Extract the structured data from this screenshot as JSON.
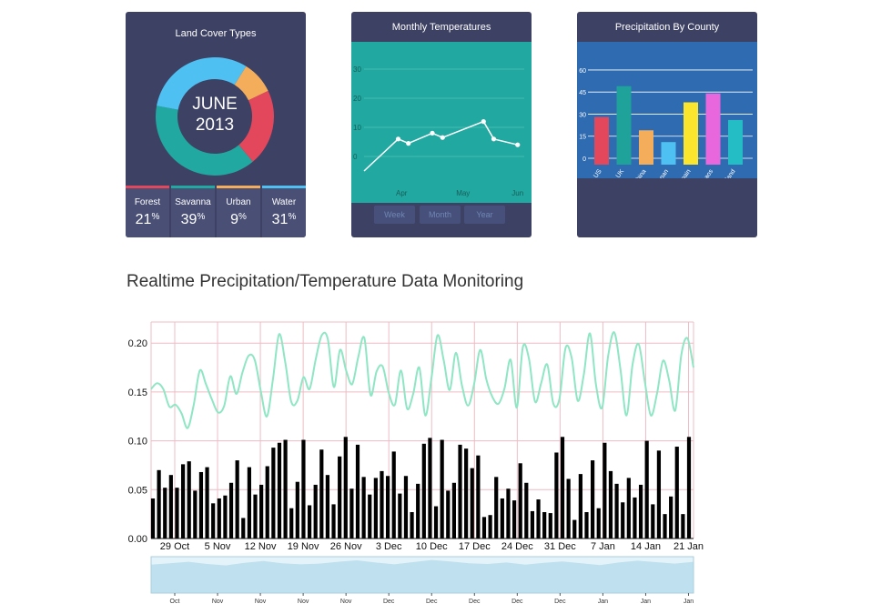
{
  "land_cover": {
    "title": "Land Cover Types",
    "center_month": "JUNE",
    "center_year": "2013",
    "stats": [
      {
        "name": "Forest",
        "value": "21",
        "unit": "%",
        "color": "#e2475b"
      },
      {
        "name": "Savanna",
        "value": "39",
        "unit": "%",
        "color": "#21a8a0"
      },
      {
        "name": "Urban",
        "value": "9",
        "unit": "%",
        "color": "#f4ad5a"
      },
      {
        "name": "Water",
        "value": "31",
        "unit": "%",
        "color": "#4fc0f2"
      }
    ]
  },
  "monthly_temps": {
    "title": "Monthly Temperatures",
    "buttons": [
      "Week",
      "Month",
      "Year"
    ]
  },
  "precip_county": {
    "title": "Precipitation By County"
  },
  "monitoring": {
    "title": "Realtime Precipitation/Temperature Data Monitoring"
  },
  "chart_data": [
    {
      "type": "pie",
      "title": "Land Cover Types",
      "categories": [
        "Forest",
        "Savanna",
        "Urban",
        "Water"
      ],
      "values": [
        21,
        39,
        9,
        31
      ],
      "colors": [
        "#e2475b",
        "#21a8a0",
        "#f4ad5a",
        "#4fc0f2"
      ],
      "donut": true
    },
    {
      "type": "line",
      "title": "Monthly Temperatures",
      "x": [
        0,
        1,
        1.3,
        2,
        2.3,
        3.5,
        3.8,
        4.5
      ],
      "values": [
        -5,
        6,
        4.5,
        8,
        6.5,
        12,
        6,
        4
      ],
      "ylim": [
        -5,
        35
      ],
      "yticks": [
        0,
        10,
        20,
        30
      ],
      "xtick_labels": [
        "Apr",
        "May",
        "Jun"
      ],
      "xtick_positions": [
        1.1,
        2.9,
        4.5
      ],
      "color": "#ffffff",
      "background": "#21a8a0"
    },
    {
      "type": "bar",
      "title": "Precipitation By County",
      "categories": [
        "US",
        "UK",
        "China",
        "Japan",
        "Spain",
        "Laos",
        "Thailand"
      ],
      "values": [
        28,
        49,
        19,
        11,
        38,
        44,
        26
      ],
      "colors": [
        "#e2475b",
        "#1fa29a",
        "#f4ad5a",
        "#4fc0f2",
        "#fbe62d",
        "#e867dc",
        "#24bcc5"
      ],
      "ylim": [
        -15,
        65
      ],
      "yticks": [
        0,
        15,
        30,
        45,
        60
      ],
      "background": "#2f6bb1"
    },
    {
      "type": "bar",
      "title": "Realtime Precipitation/Temperature Data Monitoring",
      "ylim": [
        0,
        0.22
      ],
      "yticks": [
        "0.00",
        "0.05",
        "0.10",
        "0.15",
        "0.20"
      ],
      "xtick_labels": [
        "29 Oct",
        "5 Nov",
        "12 Nov",
        "19 Nov",
        "26 Nov",
        "3 Dec",
        "10 Dec",
        "17 Dec",
        "24 Dec",
        "31 Dec",
        "7 Jan",
        "14 Jan",
        "21 Jan"
      ],
      "bar_color": "#000000",
      "bars": [
        0.041,
        0.07,
        0.052,
        0.065,
        0.052,
        0.076,
        0.079,
        0.049,
        0.068,
        0.073,
        0.036,
        0.041,
        0.044,
        0.057,
        0.08,
        0.021,
        0.073,
        0.045,
        0.055,
        0.074,
        0.093,
        0.098,
        0.101,
        0.031,
        0.058,
        0.101,
        0.034,
        0.055,
        0.091,
        0.065,
        0.035,
        0.084,
        0.104,
        0.051,
        0.096,
        0.063,
        0.045,
        0.062,
        0.069,
        0.064,
        0.089,
        0.046,
        0.064,
        0.027,
        0.056,
        0.097,
        0.103,
        0.033,
        0.101,
        0.049,
        0.057,
        0.096,
        0.092,
        0.072,
        0.085,
        0.022,
        0.024,
        0.063,
        0.041,
        0.051,
        0.039,
        0.077,
        0.057,
        0.028,
        0.04,
        0.027,
        0.026,
        0.088,
        0.104,
        0.061,
        0.019,
        0.066,
        0.027,
        0.08,
        0.031,
        0.098,
        0.069,
        0.056,
        0.037,
        0.062,
        0.042,
        0.055,
        0.1,
        0.035,
        0.09,
        0.025,
        0.043,
        0.094,
        0.025,
        0.104
      ],
      "line_series": {
        "color": "#8ee6c4",
        "values": [
          0.153,
          0.159,
          0.153,
          0.135,
          0.137,
          0.128,
          0.113,
          0.137,
          0.172,
          0.158,
          0.142,
          0.129,
          0.136,
          0.166,
          0.148,
          0.17,
          0.187,
          0.183,
          0.151,
          0.125,
          0.163,
          0.209,
          0.181,
          0.14,
          0.141,
          0.165,
          0.153,
          0.183,
          0.208,
          0.204,
          0.155,
          0.193,
          0.172,
          0.158,
          0.186,
          0.205,
          0.147,
          0.171,
          0.176,
          0.149,
          0.137,
          0.172,
          0.133,
          0.148,
          0.175,
          0.126,
          0.164,
          0.208,
          0.183,
          0.152,
          0.19,
          0.157,
          0.136,
          0.158,
          0.193,
          0.163,
          0.145,
          0.138,
          0.154,
          0.183,
          0.134,
          0.196,
          0.184,
          0.14,
          0.159,
          0.178,
          0.138,
          0.143,
          0.195,
          0.185,
          0.141,
          0.168,
          0.21,
          0.157,
          0.134,
          0.187,
          0.211,
          0.174,
          0.126,
          0.178,
          0.199,
          0.161,
          0.126,
          0.148,
          0.182,
          0.162,
          0.131,
          0.188,
          0.205,
          0.175
        ]
      }
    },
    {
      "type": "area",
      "title": "",
      "xtick_labels": [
        "Oct",
        "Nov",
        "Nov",
        "Nov",
        "Nov",
        "Dec",
        "Dec",
        "Dec",
        "Dec",
        "Dec",
        "Jan",
        "Jan",
        "Jan"
      ],
      "values": [
        0.78,
        0.82,
        0.86,
        0.8,
        0.76,
        0.83,
        0.88,
        0.82,
        0.79,
        0.81,
        0.86,
        0.9,
        0.84,
        0.79,
        0.85,
        0.91,
        0.87,
        0.82,
        0.8,
        0.84,
        0.78,
        0.83,
        0.87,
        0.82,
        0.77,
        0.84,
        0.89,
        0.85,
        0.81,
        0.86
      ],
      "fill": "#bfe0ee"
    }
  ]
}
